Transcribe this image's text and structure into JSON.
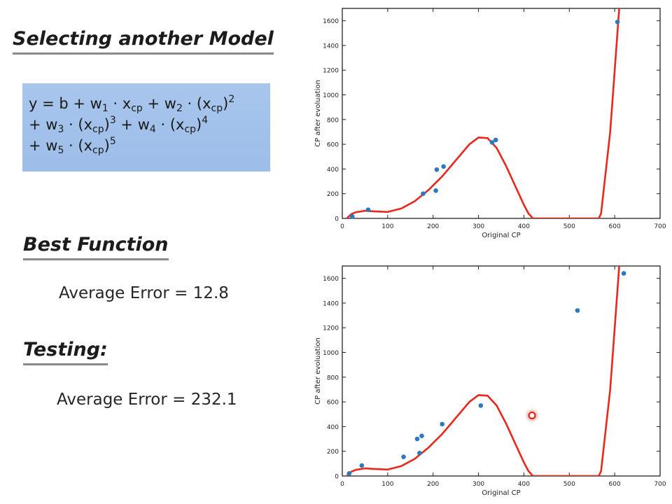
{
  "slide": {
    "model_title": "Selecting another Model",
    "formula": {
      "lines": [
        [
          {
            "t": "y = b + w"
          },
          {
            "sub": "1"
          },
          {
            "t": " · x"
          },
          {
            "sub": "cp"
          },
          {
            "t": " + w"
          },
          {
            "sub": "2"
          },
          {
            "t": " · (x"
          },
          {
            "sub": "cp"
          },
          {
            "t": ")"
          },
          {
            "sup": "2"
          }
        ],
        [
          {
            "t": "+ w"
          },
          {
            "sub": "3"
          },
          {
            "t": " · (x"
          },
          {
            "sub": "cp"
          },
          {
            "t": ")"
          },
          {
            "sup": "3"
          },
          {
            "t": " + w"
          },
          {
            "sub": "4"
          },
          {
            "t": " · (x"
          },
          {
            "sub": "cp"
          },
          {
            "t": ")"
          },
          {
            "sup": "4"
          }
        ],
        [
          {
            "t": "+ w"
          },
          {
            "sub": "5"
          },
          {
            "t": " · (x"
          },
          {
            "sub": "cp"
          },
          {
            "t": ")"
          },
          {
            "sup": "5"
          }
        ]
      ]
    },
    "best_title": "Best Function",
    "best_error": "Average Error = 12.8",
    "testing_title": "Testing:",
    "testing_error": "Average Error = 232.1"
  },
  "colors": {
    "curve": "#e8281c",
    "points": "#2c79bf",
    "highlight": "#e8281c",
    "formula_box": "#a3c2eb"
  },
  "chart_data": [
    {
      "type": "scatter",
      "title": "",
      "xlabel": "Original CP",
      "ylabel": "CP after evoluation",
      "xlim": [
        0,
        700
      ],
      "ylim": [
        0,
        1700
      ],
      "xticks": [
        0,
        100,
        200,
        300,
        400,
        500,
        600,
        700
      ],
      "yticks": [
        0,
        200,
        400,
        600,
        800,
        1000,
        1200,
        1400,
        1600
      ],
      "grid": false,
      "points": {
        "x": [
          22,
          57,
          178,
          206,
          208,
          223,
          330,
          338,
          606
        ],
        "y": [
          15,
          70,
          200,
          225,
          395,
          420,
          615,
          635,
          1590
        ]
      },
      "curve": {
        "x": [
          10,
          20,
          30,
          50,
          70,
          100,
          130,
          160,
          190,
          220,
          250,
          280,
          300,
          320,
          340,
          360,
          380,
          400,
          410,
          420,
          565,
          570,
          590,
          610
        ],
        "y": [
          0,
          35,
          50,
          62,
          57,
          52,
          80,
          140,
          230,
          340,
          470,
          600,
          655,
          650,
          570,
          430,
          270,
          110,
          40,
          0,
          0,
          40,
          700,
          1700
        ]
      }
    },
    {
      "type": "scatter",
      "title": "",
      "xlabel": "Original CP",
      "ylabel": "CP after evoluation",
      "xlim": [
        0,
        700
      ],
      "ylim": [
        0,
        1700
      ],
      "xticks": [
        0,
        100,
        200,
        300,
        400,
        500,
        600,
        700
      ],
      "yticks": [
        0,
        200,
        400,
        600,
        800,
        1000,
        1200,
        1400,
        1600
      ],
      "grid": false,
      "points": {
        "x": [
          15,
          43,
          135,
          165,
          170,
          175,
          220,
          305,
          518,
          620
        ],
        "y": [
          20,
          85,
          155,
          300,
          185,
          325,
          420,
          570,
          1340,
          1640
        ]
      },
      "highlight": {
        "x": 418,
        "y": 490
      },
      "curve": {
        "x": [
          10,
          20,
          30,
          50,
          70,
          100,
          130,
          160,
          190,
          220,
          250,
          280,
          300,
          320,
          340,
          360,
          380,
          400,
          410,
          420,
          565,
          570,
          590,
          610
        ],
        "y": [
          0,
          35,
          50,
          62,
          57,
          52,
          80,
          140,
          230,
          340,
          470,
          600,
          655,
          650,
          570,
          430,
          270,
          110,
          40,
          0,
          0,
          40,
          700,
          1700
        ]
      }
    }
  ]
}
